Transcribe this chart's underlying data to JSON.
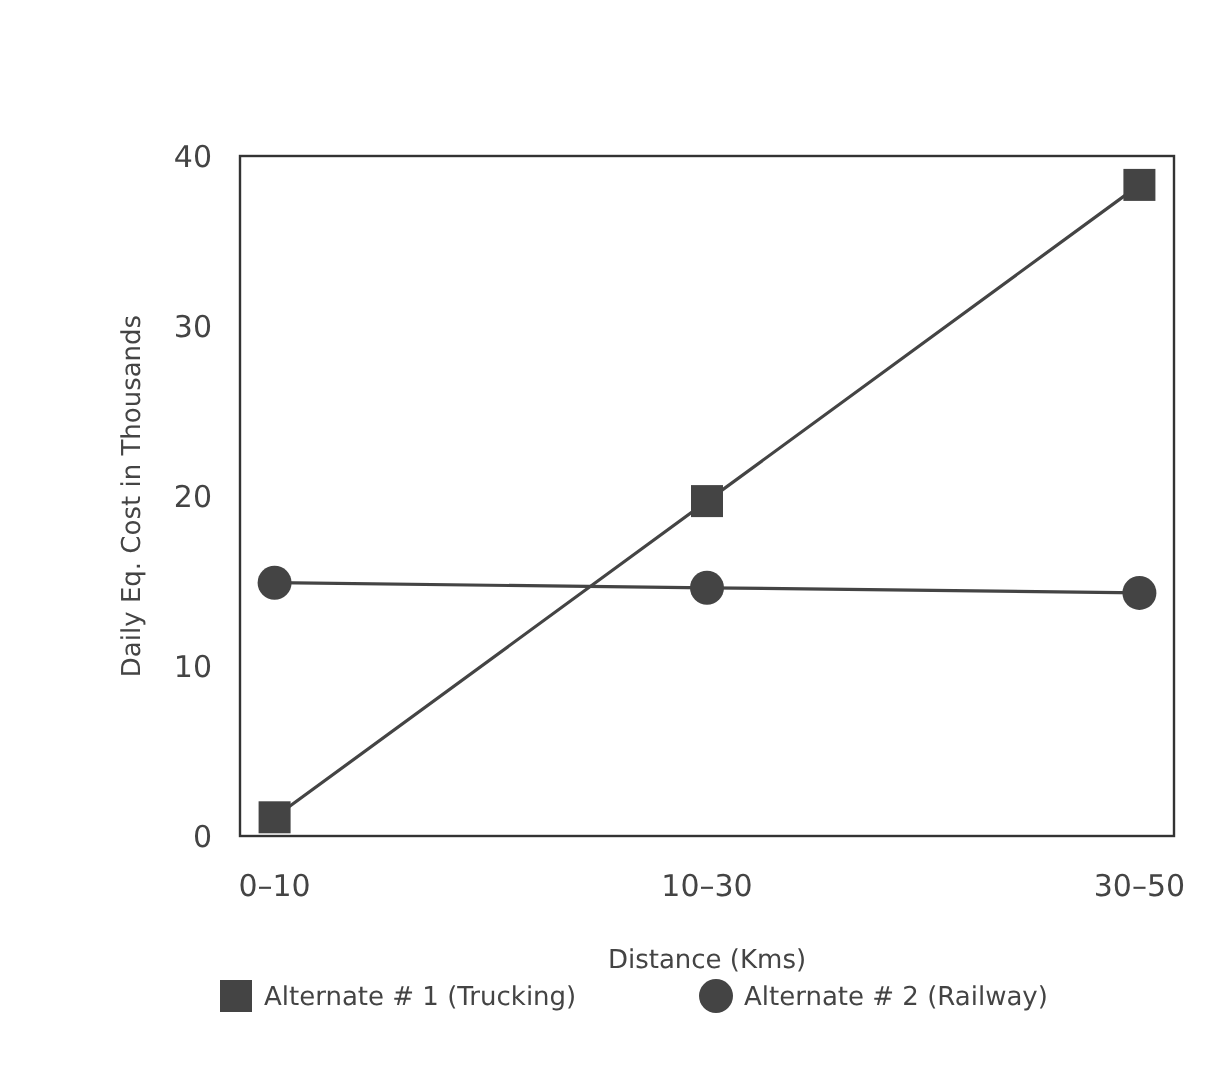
{
  "chart_data": {
    "type": "line",
    "xlabel": "Distance (Kms)",
    "ylabel": "Daily Eq. Cost in Thousands",
    "categories": [
      "0–10",
      "10–30",
      "30–50"
    ],
    "series": [
      {
        "name": "Alternate # 1 (Trucking)",
        "color": "#444444",
        "marker": "square",
        "values": [
          1.1,
          19.7,
          38.3
        ]
      },
      {
        "name": "Alternate # 2 (Railway)",
        "color": "#444444",
        "marker": "circle",
        "values": [
          14.9,
          14.6,
          14.3
        ]
      }
    ],
    "ylim": [
      0,
      40
    ],
    "yticks": [
      0,
      10,
      20,
      30,
      40
    ],
    "grid": false,
    "legend": "bottom",
    "line_style": "solid"
  }
}
